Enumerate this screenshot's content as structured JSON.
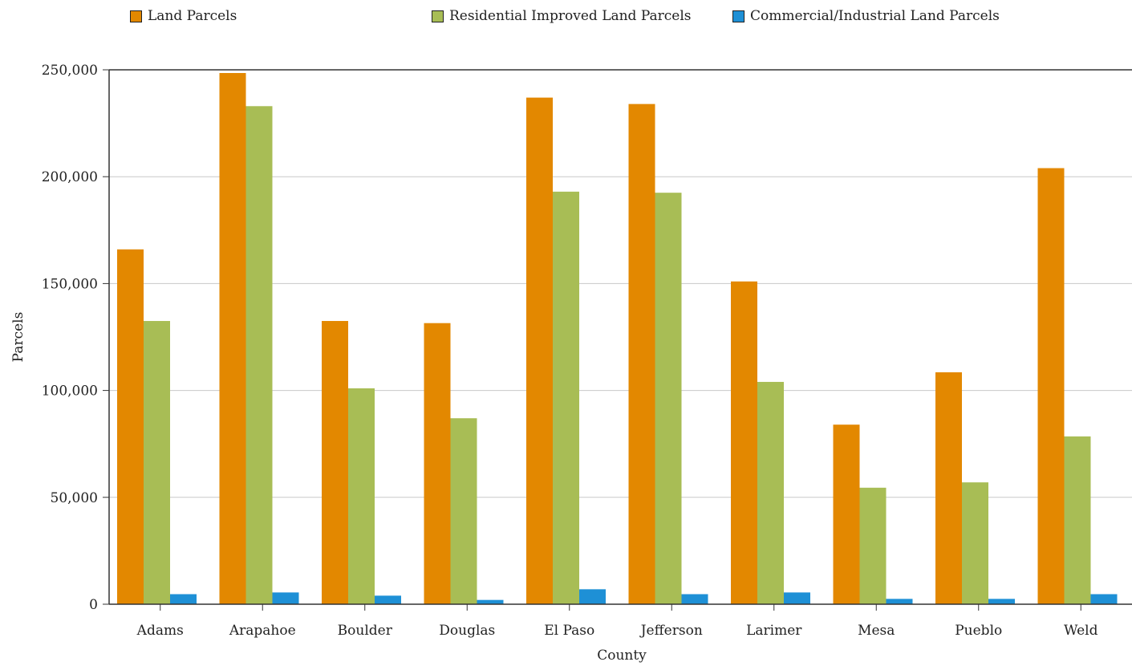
{
  "chart_data": {
    "type": "bar",
    "xlabel": "County",
    "ylabel": "Parcels",
    "ylim": [
      0,
      250000
    ],
    "yticks": [
      0,
      50000,
      100000,
      150000,
      200000,
      250000
    ],
    "ytick_labels": [
      "0",
      "50,000",
      "100,000",
      "150,000",
      "200,000",
      "250,000"
    ],
    "grid": true,
    "legend_position": "top",
    "categories": [
      "Adams",
      "Arapahoe",
      "Boulder",
      "Douglas",
      "El Paso",
      "Jefferson",
      "Larimer",
      "Mesa",
      "Pueblo",
      "Weld"
    ],
    "series": [
      {
        "name": "Land Parcels",
        "color": "#e38800",
        "values": [
          166000,
          248500,
          132500,
          131500,
          237000,
          234000,
          151000,
          84000,
          108500,
          204000
        ]
      },
      {
        "name": "Residential Improved Land Parcels",
        "color": "#a8bd55",
        "values": [
          132500,
          233000,
          101000,
          87000,
          193000,
          192500,
          104000,
          54500,
          57000,
          78500
        ]
      },
      {
        "name": "Commercial/Industrial Land Parcels",
        "color": "#1e90d6",
        "values": [
          4700,
          5500,
          4000,
          2000,
          7000,
          4700,
          5500,
          2500,
          2500,
          4700
        ]
      }
    ]
  }
}
